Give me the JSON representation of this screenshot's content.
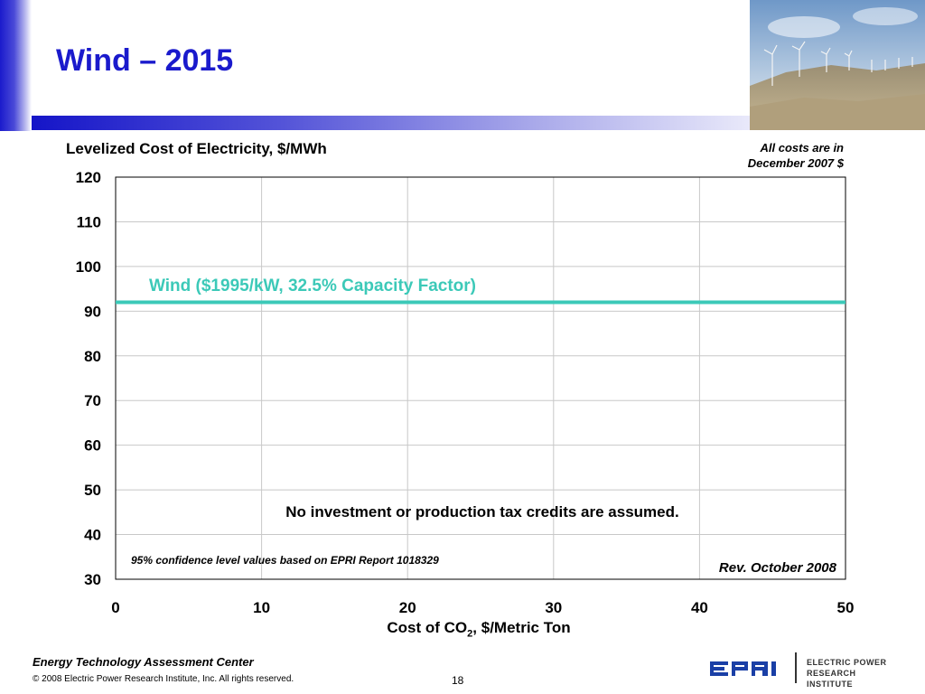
{
  "slide": {
    "title": "Wind – 2015",
    "costs_note": "All costs are in\nDecember 2007 $",
    "footer_center": "Energy Technology Assessment Center",
    "copyright": "© 2008 Electric Power Research Institute, Inc. All rights reserved.",
    "page_number": "18",
    "logo_mark": "EPRI",
    "logo_text": "ELECTRIC POWER\nRESEARCH INSTITUTE",
    "photo_icon": "wind-farm-photo"
  },
  "chart_data": {
    "type": "line",
    "ylabel": "Levelized Cost of Electricity, $/MWh",
    "xlabel_main": "Cost of CO",
    "xlabel_sub": "2",
    "xlabel_rest": ", $/Metric Ton",
    "xlim": [
      0,
      50
    ],
    "ylim": [
      30,
      120
    ],
    "xticks": [
      0,
      10,
      20,
      30,
      40,
      50
    ],
    "yticks": [
      30,
      40,
      50,
      60,
      70,
      80,
      90,
      100,
      110,
      120
    ],
    "grid": true,
    "series": [
      {
        "name": "Wind ($1995/kW, 32.5% Capacity Factor)",
        "color": "#3cc9b8",
        "x": [
          0,
          50
        ],
        "y": [
          92,
          92
        ]
      }
    ],
    "annotations": {
      "tax_note": "No investment or production tax credits are assumed.",
      "confidence_note": "95% confidence level values based on EPRI Report 1018329",
      "revision": "Rev. October 2008"
    }
  }
}
